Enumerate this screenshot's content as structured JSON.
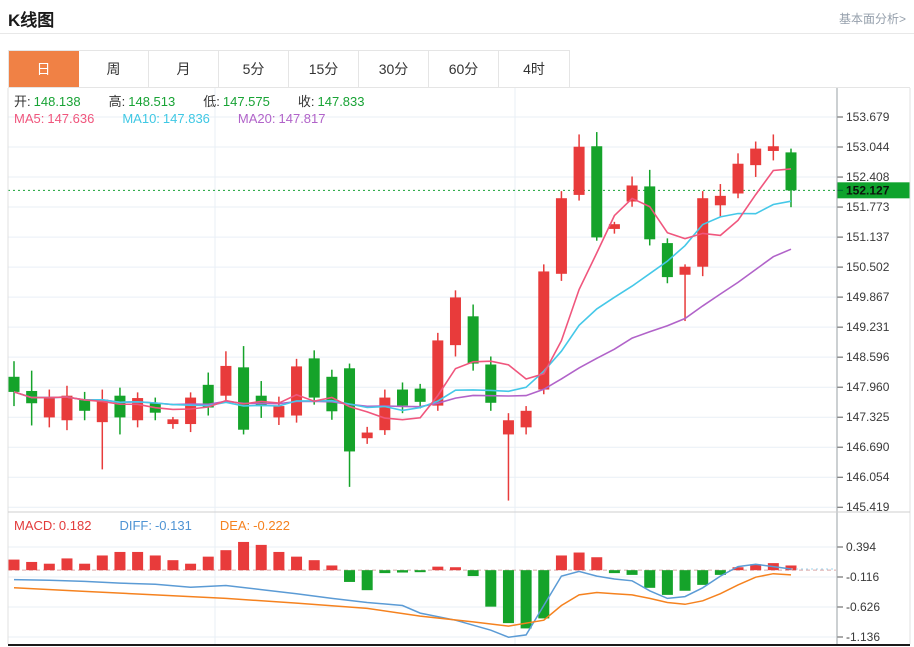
{
  "header": {
    "title": "K线图",
    "link": "基本面分析>"
  },
  "tabs": {
    "items": [
      "日",
      "周",
      "月",
      "5分",
      "15分",
      "30分",
      "60分",
      "4时"
    ],
    "selected_index": 0
  },
  "info": {
    "ohlc": [
      {
        "label": "开:",
        "value": "148.138"
      },
      {
        "label": "高:",
        "value": "148.513"
      },
      {
        "label": "低:",
        "value": "147.575"
      },
      {
        "label": "收:",
        "value": "147.833"
      }
    ],
    "ohlc_value_color": "#18a335",
    "ma": [
      {
        "label": "MA5:",
        "value": "147.636",
        "color": "#f0567d"
      },
      {
        "label": "MA10:",
        "value": "147.836",
        "color": "#3fc8e4"
      },
      {
        "label": "MA20:",
        "value": "147.817",
        "color": "#b163c9"
      }
    ]
  },
  "macd_info": [
    {
      "label": "MACD:",
      "value": "0.182",
      "color": "#e23b3b"
    },
    {
      "label": "DIFF:",
      "value": "-0.131",
      "color": "#4f94d4"
    },
    {
      "label": "DEA:",
      "value": "-0.222",
      "color": "#f5821f"
    }
  ],
  "price_axis": {
    "ticks": [
      "153.679",
      "153.044",
      "152.408",
      "151.773",
      "151.137",
      "150.502",
      "149.867",
      "149.231",
      "148.596",
      "147.960",
      "147.325",
      "146.690",
      "146.054",
      "145.419"
    ],
    "current_tag": "152.127",
    "tag_color": "#0fa32d"
  },
  "macd_axis": {
    "ticks": [
      "0.394",
      "-0.116",
      "-0.626",
      "-1.136"
    ]
  },
  "colors": {
    "up": "#e83b3b",
    "down": "#15a32a",
    "ma5": "#f0567d",
    "ma10": "#45c8e8",
    "ma20": "#b163c9",
    "diff_line": "#5b9bd5",
    "dea_line": "#f5821f",
    "grid": "#e9eff6",
    "axis_border": "#9aa0a6",
    "dotted_price_line": "#18a335",
    "selected_tab": "#f08145"
  },
  "chart_data": {
    "type": "candlestick",
    "panels": [
      "price",
      "macd"
    ],
    "price_panel": {
      "ylim": [
        145.419,
        153.679
      ],
      "ytick_step": 0.635,
      "current_price": 152.127,
      "ma_periods": [
        5,
        10,
        20
      ],
      "candles_ohlc": [
        [
          148.18,
          148.51,
          147.56,
          147.86
        ],
        [
          147.88,
          148.31,
          147.15,
          147.62
        ],
        [
          147.32,
          147.91,
          147.11,
          147.74
        ],
        [
          147.26,
          147.99,
          147.05,
          147.78
        ],
        [
          147.71,
          147.86,
          147.26,
          147.46
        ],
        [
          147.22,
          147.91,
          146.22,
          147.7
        ],
        [
          147.78,
          147.95,
          146.96,
          147.32
        ],
        [
          147.26,
          147.85,
          147.11,
          147.73
        ],
        [
          147.62,
          147.74,
          147.26,
          147.42
        ],
        [
          147.18,
          147.33,
          147.08,
          147.28
        ],
        [
          147.18,
          147.85,
          147.01,
          147.74
        ],
        [
          148.01,
          148.27,
          147.36,
          147.53
        ],
        [
          147.78,
          148.72,
          147.68,
          148.41
        ],
        [
          148.38,
          148.83,
          146.96,
          147.06
        ],
        [
          147.78,
          148.09,
          147.31,
          147.56
        ],
        [
          147.32,
          147.76,
          147.16,
          147.56
        ],
        [
          147.36,
          148.56,
          147.21,
          148.4
        ],
        [
          148.57,
          148.74,
          147.59,
          147.74
        ],
        [
          148.18,
          148.33,
          147.27,
          147.45
        ],
        [
          148.36,
          148.46,
          145.85,
          146.6
        ],
        [
          146.88,
          147.12,
          146.76,
          147.0
        ],
        [
          147.05,
          147.91,
          146.95,
          147.74
        ],
        [
          147.91,
          148.06,
          147.41,
          147.57
        ],
        [
          147.93,
          148.03,
          147.51,
          147.65
        ],
        [
          147.57,
          149.11,
          147.46,
          148.95
        ],
        [
          148.85,
          150.01,
          148.61,
          149.86
        ],
        [
          149.46,
          149.71,
          148.31,
          148.46
        ],
        [
          148.44,
          148.61,
          147.46,
          147.63
        ],
        [
          146.96,
          147.41,
          145.56,
          147.26
        ],
        [
          147.11,
          147.56,
          146.96,
          147.46
        ],
        [
          147.91,
          150.56,
          147.81,
          150.41
        ],
        [
          150.36,
          152.11,
          150.21,
          151.96
        ],
        [
          152.03,
          153.31,
          151.91,
          153.05
        ],
        [
          153.06,
          153.36,
          151.06,
          151.13
        ],
        [
          151.31,
          151.46,
          151.21,
          151.41
        ],
        [
          151.89,
          152.42,
          151.78,
          152.23
        ],
        [
          152.21,
          152.56,
          150.96,
          151.09
        ],
        [
          151.01,
          151.11,
          150.16,
          150.29
        ],
        [
          150.34,
          150.56,
          149.36,
          150.51
        ],
        [
          150.51,
          152.11,
          150.31,
          151.96
        ],
        [
          151.81,
          152.26,
          151.56,
          152.01
        ],
        [
          152.06,
          152.91,
          151.96,
          152.69
        ],
        [
          152.66,
          153.16,
          152.41,
          153.01
        ],
        [
          152.96,
          153.31,
          152.76,
          153.06
        ],
        [
          152.93,
          153.01,
          151.77,
          152.127
        ]
      ]
    },
    "macd_panel": {
      "ylim": [
        -1.391,
        0.649
      ],
      "histogram": [
        0.18,
        0.14,
        0.11,
        0.2,
        0.11,
        0.25,
        0.31,
        0.31,
        0.25,
        0.17,
        0.11,
        0.23,
        0.34,
        0.48,
        0.43,
        0.31,
        0.23,
        0.17,
        0.08,
        -0.2,
        -0.34,
        -0.05,
        -0.04,
        -0.03,
        0.06,
        0.05,
        -0.1,
        -0.62,
        -0.9,
        -0.99,
        -0.82,
        0.25,
        0.3,
        0.22,
        -0.05,
        -0.08,
        -0.3,
        -0.42,
        -0.35,
        -0.25,
        -0.08,
        0.05,
        0.1,
        0.12,
        0.08
      ],
      "diff_points": [
        [
          1,
          -0.16
        ],
        [
          3,
          -0.17
        ],
        [
          5,
          -0.19
        ],
        [
          7,
          -0.22
        ],
        [
          9,
          -0.24
        ],
        [
          11,
          -0.29
        ],
        [
          13,
          -0.26
        ],
        [
          15,
          -0.33
        ],
        [
          17,
          -0.4
        ],
        [
          19,
          -0.48
        ],
        [
          21,
          -0.55
        ],
        [
          23,
          -0.6
        ],
        [
          24,
          -0.73
        ],
        [
          26,
          -0.85
        ],
        [
          28,
          -1.02
        ],
        [
          29,
          -1.14
        ],
        [
          30,
          -1.1
        ],
        [
          31,
          -0.6
        ],
        [
          32,
          -0.1
        ],
        [
          33,
          -0.02
        ],
        [
          34,
          -0.1
        ],
        [
          35,
          -0.15
        ],
        [
          36,
          -0.18
        ],
        [
          37,
          -0.35
        ],
        [
          38,
          -0.48
        ],
        [
          39,
          -0.45
        ],
        [
          40,
          -0.3
        ],
        [
          41,
          -0.1
        ],
        [
          42,
          0.06
        ],
        [
          43,
          0.1
        ],
        [
          44,
          0.06
        ],
        [
          45,
          0.02
        ]
      ],
      "dea_points": [
        [
          1,
          -0.3
        ],
        [
          5,
          -0.36
        ],
        [
          9,
          -0.42
        ],
        [
          13,
          -0.48
        ],
        [
          17,
          -0.56
        ],
        [
          21,
          -0.65
        ],
        [
          24,
          -0.78
        ],
        [
          27,
          -0.88
        ],
        [
          29,
          -0.95
        ],
        [
          31,
          -0.85
        ],
        [
          32,
          -0.6
        ],
        [
          33,
          -0.42
        ],
        [
          34,
          -0.38
        ],
        [
          35,
          -0.4
        ],
        [
          36,
          -0.42
        ],
        [
          37,
          -0.48
        ],
        [
          38,
          -0.55
        ],
        [
          39,
          -0.58
        ],
        [
          40,
          -0.52
        ],
        [
          41,
          -0.4
        ],
        [
          42,
          -0.25
        ],
        [
          43,
          -0.12
        ],
        [
          44,
          -0.06
        ],
        [
          45,
          -0.08
        ]
      ]
    }
  }
}
